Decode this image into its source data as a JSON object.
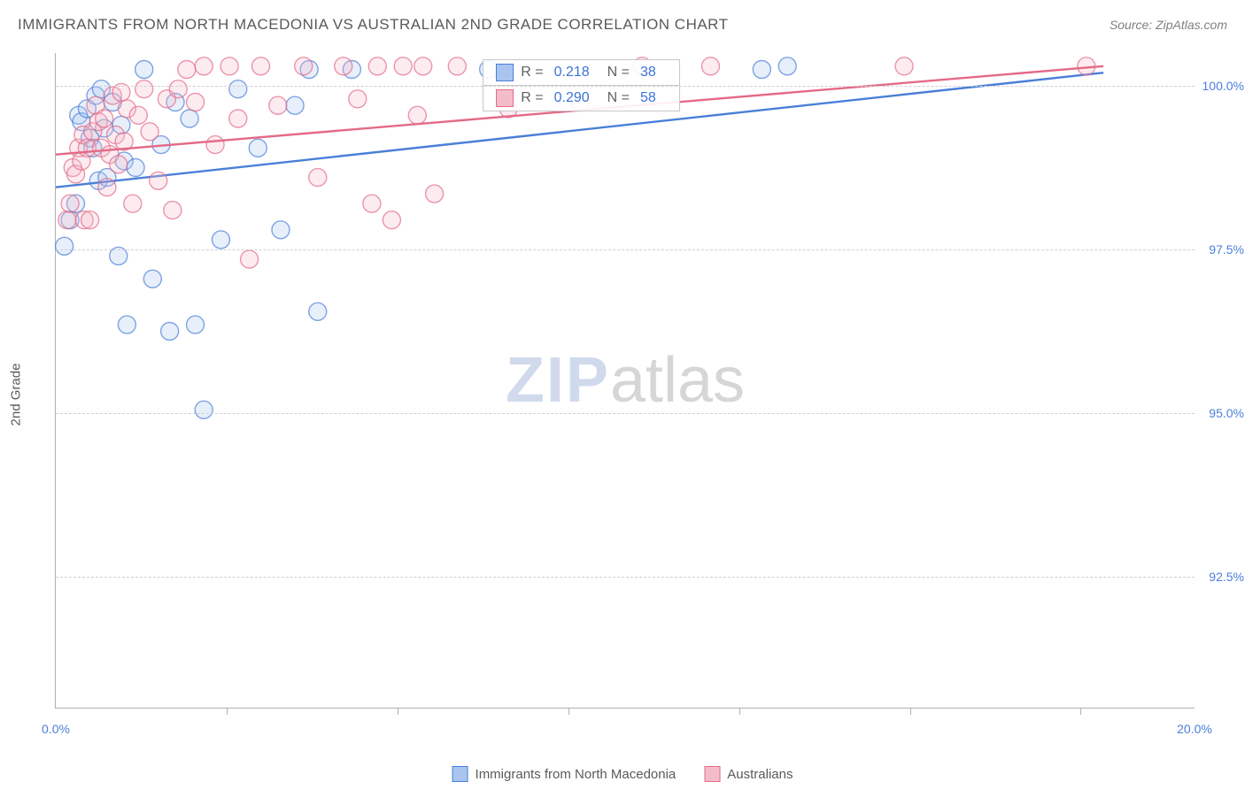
{
  "title": "IMMIGRANTS FROM NORTH MACEDONIA VS AUSTRALIAN 2ND GRADE CORRELATION CHART",
  "source": "Source: ZipAtlas.com",
  "ylabel": "2nd Grade",
  "watermark": {
    "part1": "ZIP",
    "part2": "atlas"
  },
  "chart": {
    "type": "scatter",
    "xlim": [
      0.0,
      20.0
    ],
    "ylim": [
      90.5,
      100.5
    ],
    "x_ticks_labeled": [
      {
        "v": 0.0,
        "label": "0.0%"
      },
      {
        "v": 20.0,
        "label": "20.0%"
      }
    ],
    "x_ticks_major": [
      3.0,
      6.0,
      9.0,
      12.0,
      15.0,
      18.0
    ],
    "y_ticks": [
      {
        "v": 92.5,
        "label": "92.5%"
      },
      {
        "v": 95.0,
        "label": "95.0%"
      },
      {
        "v": 97.5,
        "label": "97.5%"
      },
      {
        "v": 100.0,
        "label": "100.0%"
      }
    ],
    "grid_color": "#d0d0d0",
    "axis_color": "#b0b0b0",
    "background_color": "#ffffff",
    "marker_radius": 10,
    "marker_fill_opacity": 0.28,
    "marker_stroke_width": 1.4,
    "trend_line_width": 2.4,
    "series": [
      {
        "name": "Immigrants from North Macedonia",
        "color": "#4a7fd8",
        "fill": "#a9c4ef",
        "R": "0.218",
        "N": "38",
        "trend": {
          "x1": 0.0,
          "y1": 98.45,
          "x2": 18.4,
          "y2": 100.2
        },
        "points": [
          [
            0.15,
            97.55
          ],
          [
            0.25,
            97.95
          ],
          [
            0.35,
            98.2
          ],
          [
            0.4,
            99.55
          ],
          [
            0.45,
            99.45
          ],
          [
            0.55,
            99.65
          ],
          [
            0.6,
            99.2
          ],
          [
            0.65,
            99.05
          ],
          [
            0.7,
            99.85
          ],
          [
            0.75,
            98.55
          ],
          [
            0.8,
            99.95
          ],
          [
            0.85,
            99.35
          ],
          [
            0.9,
            98.6
          ],
          [
            1.0,
            99.75
          ],
          [
            1.1,
            97.4
          ],
          [
            1.15,
            99.4
          ],
          [
            1.2,
            98.85
          ],
          [
            1.25,
            96.35
          ],
          [
            1.4,
            98.75
          ],
          [
            1.55,
            100.25
          ],
          [
            1.7,
            97.05
          ],
          [
            1.85,
            99.1
          ],
          [
            2.0,
            96.25
          ],
          [
            2.1,
            99.75
          ],
          [
            2.35,
            99.5
          ],
          [
            2.45,
            96.35
          ],
          [
            2.6,
            95.05
          ],
          [
            2.9,
            97.65
          ],
          [
            3.2,
            99.95
          ],
          [
            3.55,
            99.05
          ],
          [
            3.95,
            97.8
          ],
          [
            4.2,
            99.7
          ],
          [
            4.45,
            100.25
          ],
          [
            4.6,
            96.55
          ],
          [
            5.2,
            100.25
          ],
          [
            7.6,
            100.25
          ],
          [
            12.4,
            100.25
          ],
          [
            12.85,
            100.3
          ]
        ]
      },
      {
        "name": "Australians",
        "color": "#e46a87",
        "fill": "#f4bcc9",
        "R": "0.290",
        "N": "58",
        "trend": {
          "x1": 0.0,
          "y1": 98.95,
          "x2": 18.4,
          "y2": 100.3
        },
        "points": [
          [
            0.2,
            97.95
          ],
          [
            0.25,
            98.2
          ],
          [
            0.3,
            98.75
          ],
          [
            0.35,
            98.65
          ],
          [
            0.4,
            99.05
          ],
          [
            0.45,
            98.85
          ],
          [
            0.48,
            99.25
          ],
          [
            0.5,
            97.95
          ],
          [
            0.55,
            99.05
          ],
          [
            0.6,
            97.95
          ],
          [
            0.65,
            99.3
          ],
          [
            0.7,
            99.7
          ],
          [
            0.75,
            99.45
          ],
          [
            0.8,
            99.05
          ],
          [
            0.85,
            99.5
          ],
          [
            0.9,
            98.45
          ],
          [
            0.95,
            98.95
          ],
          [
            1.0,
            99.85
          ],
          [
            1.05,
            99.25
          ],
          [
            1.1,
            98.8
          ],
          [
            1.15,
            99.9
          ],
          [
            1.2,
            99.15
          ],
          [
            1.25,
            99.65
          ],
          [
            1.35,
            98.2
          ],
          [
            1.45,
            99.55
          ],
          [
            1.55,
            99.95
          ],
          [
            1.65,
            99.3
          ],
          [
            1.8,
            98.55
          ],
          [
            1.95,
            99.8
          ],
          [
            2.05,
            98.1
          ],
          [
            2.15,
            99.95
          ],
          [
            2.3,
            100.25
          ],
          [
            2.45,
            99.75
          ],
          [
            2.6,
            100.3
          ],
          [
            2.8,
            99.1
          ],
          [
            3.05,
            100.3
          ],
          [
            3.2,
            99.5
          ],
          [
            3.4,
            97.35
          ],
          [
            3.6,
            100.3
          ],
          [
            3.9,
            99.7
          ],
          [
            4.35,
            100.3
          ],
          [
            4.6,
            98.6
          ],
          [
            5.05,
            100.3
          ],
          [
            5.3,
            99.8
          ],
          [
            5.55,
            98.2
          ],
          [
            5.65,
            100.3
          ],
          [
            5.9,
            97.95
          ],
          [
            6.1,
            100.3
          ],
          [
            6.35,
            99.55
          ],
          [
            6.45,
            100.3
          ],
          [
            6.65,
            98.35
          ],
          [
            7.05,
            100.3
          ],
          [
            7.95,
            99.65
          ],
          [
            9.2,
            99.75
          ],
          [
            10.3,
            100.3
          ],
          [
            11.5,
            100.3
          ],
          [
            14.9,
            100.3
          ],
          [
            18.1,
            100.3
          ]
        ]
      }
    ],
    "legend_bottom": [
      {
        "label": "Immigrants from North Macedonia",
        "color": "#4a7fd8",
        "fill": "#a9c4ef"
      },
      {
        "label": "Australians",
        "color": "#e46a87",
        "fill": "#f4bcc9"
      }
    ]
  }
}
